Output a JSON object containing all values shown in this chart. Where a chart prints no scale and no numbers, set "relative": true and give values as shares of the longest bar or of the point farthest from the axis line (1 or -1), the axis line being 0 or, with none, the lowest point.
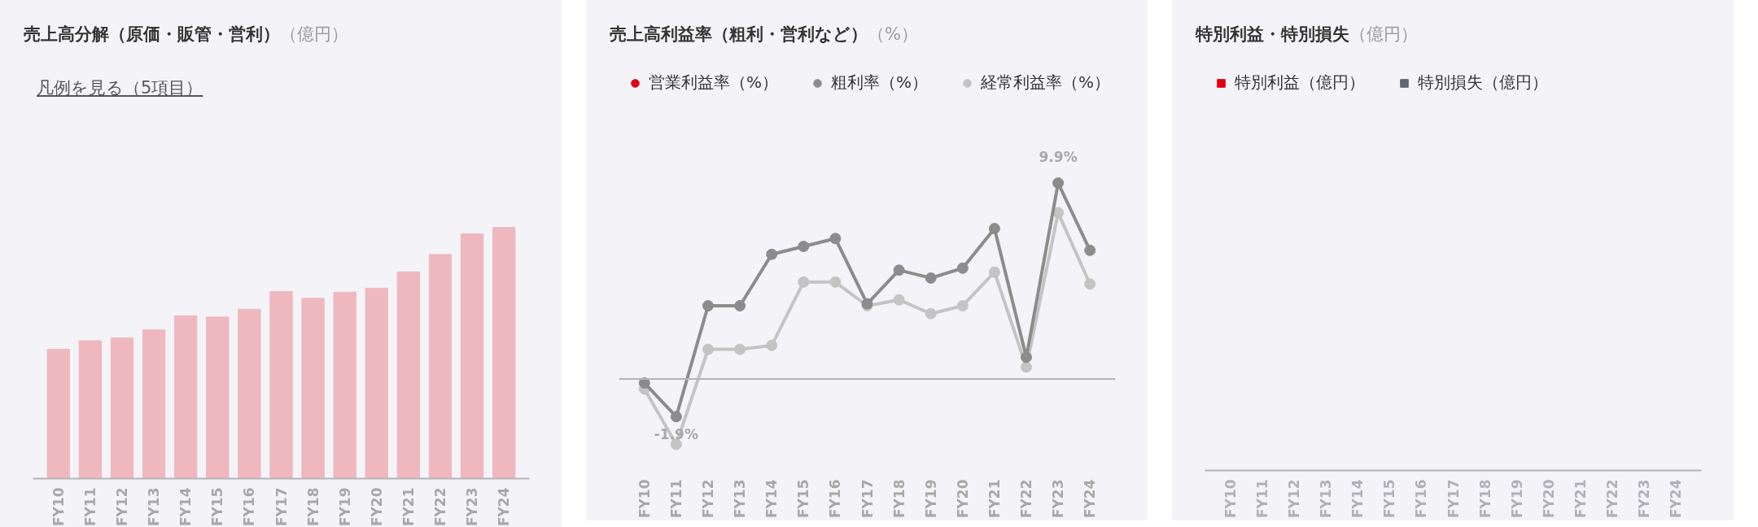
{
  "chart_data": [
    {
      "type": "bar",
      "title": "売上高分解（原価・販管・営利）",
      "subtitle": "（億円）",
      "annotations": [
        "凡例を見る（5項目）"
      ],
      "relative": true,
      "tick_labels": "x",
      "categories": [
        "FY10",
        "FY11",
        "FY12",
        "FY13",
        "FY14",
        "FY15",
        "FY16",
        "FY17",
        "FY18",
        "FY19",
        "FY20",
        "FY21",
        "FY22",
        "FY23",
        "FY24"
      ],
      "series": [
        {
          "color": "#efb8be",
          "values": [
            0.515,
            0.549,
            0.56,
            0.592,
            0.648,
            0.643,
            0.674,
            0.745,
            0.718,
            0.742,
            0.758,
            0.823,
            0.892,
            0.974,
            1
          ]
        }
      ]
    },
    {
      "type": "line",
      "title": "売上高利益率（粗利・営利など）",
      "subtitle": "（%）",
      "tick_labels": "x",
      "legend": "top left",
      "marker": "circle",
      "ref_lines": [
        {
          "axis": "y",
          "value": 0,
          "color": "#b4b4b8"
        }
      ],
      "categories": [
        "FY10",
        "FY11",
        "FY12",
        "FY13",
        "FY14",
        "FY15",
        "FY16",
        "FY17",
        "FY18",
        "FY19",
        "FY20",
        "FY21",
        "FY22",
        "FY23",
        "FY24"
      ],
      "series": [
        {
          "name": "営業利益率（%）",
          "color": "#e00012",
          "values": [
            null,
            null,
            null,
            null,
            null,
            null,
            null,
            null,
            null,
            null,
            null,
            null,
            null,
            null,
            null
          ]
        },
        {
          "name": "粗利率（%）",
          "color": "#8c8c8c",
          "values": [
            -0.2,
            -1.9,
            3.7,
            3.7,
            6.3,
            6.7,
            7.1,
            3.8,
            5.5,
            5.1,
            5.6,
            7.6,
            1.1,
            9.9,
            6.5
          ],
          "value_labels": [
            null,
            "-1.9%",
            null,
            null,
            null,
            null,
            null,
            null,
            null,
            null,
            null,
            null,
            null,
            "9.9%",
            null
          ]
        },
        {
          "name": "経常利益率（%）",
          "color": "#c4c4c4",
          "values": [
            -0.5,
            -3.3,
            1.5,
            1.5,
            1.7,
            4.9,
            4.9,
            3.7,
            4.0,
            3.3,
            3.7,
            5.4,
            0.6,
            8.4,
            4.8
          ]
        }
      ]
    },
    {
      "type": "other",
      "title": "特別利益・特別損失",
      "subtitle": "（億円）",
      "legend": "top left",
      "categories": [
        "FY10",
        "FY11",
        "FY12",
        "FY13",
        "FY14",
        "FY15",
        "FY16",
        "FY17",
        "FY18",
        "FY19",
        "FY20",
        "FY21",
        "FY22",
        "FY23",
        "FY24"
      ],
      "series": [
        {
          "name": "特別利益（億円）",
          "color": "#e00012",
          "values": [
            null,
            null,
            null,
            null,
            null,
            null,
            null,
            null,
            null,
            null,
            null,
            null,
            null,
            null,
            null
          ]
        },
        {
          "name": "特別損失（億円）",
          "color": "#5f6670",
          "values": [
            null,
            null,
            null,
            null,
            null,
            null,
            null,
            null,
            null,
            null,
            null,
            null,
            null,
            null,
            null
          ]
        }
      ]
    }
  ]
}
